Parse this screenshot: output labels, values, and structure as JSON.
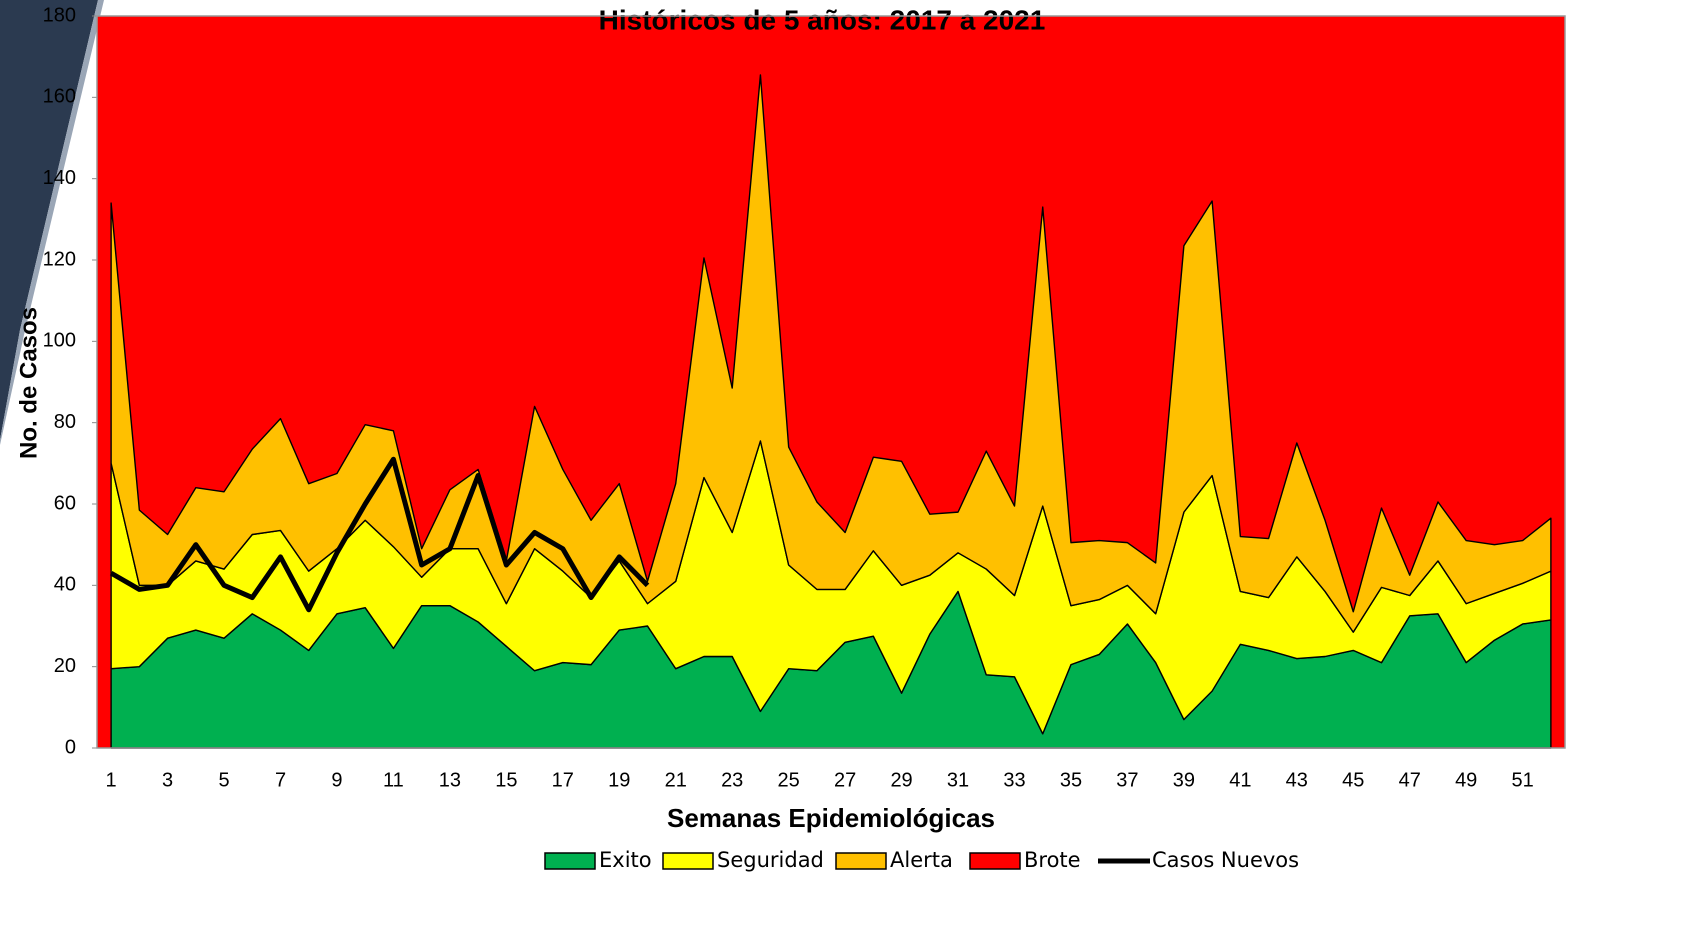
{
  "chart_data": {
    "type": "area",
    "stacked": true,
    "title": "Históricos de 5 años: 2017 a 2021",
    "x_label": "Semanas Epidemiológicas",
    "y_label": "No. de Casos",
    "categories": [
      "1",
      null,
      "3",
      null,
      "5",
      null,
      "7",
      null,
      "9",
      null,
      "11",
      null,
      "13",
      null,
      "15",
      null,
      "17",
      null,
      "19",
      null,
      "21",
      null,
      "23",
      null,
      "25",
      null,
      "27",
      null,
      "29",
      null,
      "31",
      null,
      "33",
      null,
      "35",
      null,
      "37",
      null,
      "39",
      null,
      "41",
      null,
      "43",
      null,
      "45",
      null,
      "47",
      null,
      "49",
      null,
      "51",
      null
    ],
    "ylim": [
      0,
      180
    ],
    "yticks": [
      0,
      20,
      40,
      60,
      80,
      100,
      120,
      140,
      160,
      180
    ],
    "grid": false,
    "series": [
      {
        "name": "Exito",
        "color": "#00b050",
        "values": [
          19.5,
          20,
          27,
          29,
          27,
          33,
          29,
          24,
          33,
          34.5,
          24.5,
          35,
          35,
          31,
          25,
          19,
          21,
          20.5,
          29,
          30,
          19.5,
          22.5,
          22.5,
          9,
          19.5,
          19,
          26,
          27.5,
          13.5,
          28,
          38.5,
          18,
          17.5,
          3.5,
          20.5,
          23,
          30.5,
          21,
          7,
          14,
          25.5,
          24,
          22,
          22.5,
          24,
          21,
          32.5,
          33,
          21,
          26.5,
          30.5,
          31.5
        ]
      },
      {
        "name": "Seguridad",
        "color": "#ffff00",
        "values": [
          50.5,
          20,
          13,
          17,
          17,
          19.5,
          24.5,
          19.5,
          16,
          21.5,
          25,
          7,
          14,
          18,
          10.5,
          30,
          22.5,
          16.5,
          17,
          5.5,
          21.5,
          44,
          30.5,
          66.5,
          25.5,
          20,
          13,
          21,
          26.5,
          14.5,
          9.5,
          26,
          20,
          56,
          14.5,
          13.5,
          9.5,
          12,
          51,
          53,
          13,
          13,
          25,
          16,
          4.5,
          18.5,
          5,
          13,
          14.5,
          11.5,
          10,
          12
        ]
      },
      {
        "name": "Alerta",
        "color": "#ffc000",
        "values": [
          64,
          18.5,
          12.5,
          18,
          19,
          21,
          27.5,
          21.5,
          18.5,
          23.5,
          28.5,
          7,
          14.5,
          19.5,
          10.5,
          35,
          25,
          19,
          19,
          5.5,
          24,
          54,
          35.5,
          90,
          29,
          21.5,
          14,
          23,
          30.5,
          15,
          10,
          29,
          22,
          73.5,
          15.5,
          14.5,
          10.5,
          12.5,
          65.5,
          67.5,
          13.5,
          14.5,
          28,
          17.5,
          5,
          19.5,
          5,
          14.5,
          15.5,
          12,
          10.5,
          13
        ]
      },
      {
        "name": "Brote",
        "color": "#ff0000"
      },
      {
        "name": "Casos Nuevos",
        "color": "#000000",
        "type": "line",
        "values": [
          43,
          39,
          40,
          50,
          40,
          37,
          47,
          34,
          48,
          60,
          71,
          45,
          49,
          67,
          45,
          53,
          49,
          37,
          47,
          40,
          null,
          null,
          null,
          null,
          null,
          null,
          null,
          null,
          null,
          null,
          null,
          null,
          null,
          null,
          null,
          null,
          null,
          null,
          null,
          null,
          null,
          null,
          null,
          null,
          null,
          null,
          null,
          null,
          null,
          null,
          null,
          null
        ]
      }
    ]
  }
}
